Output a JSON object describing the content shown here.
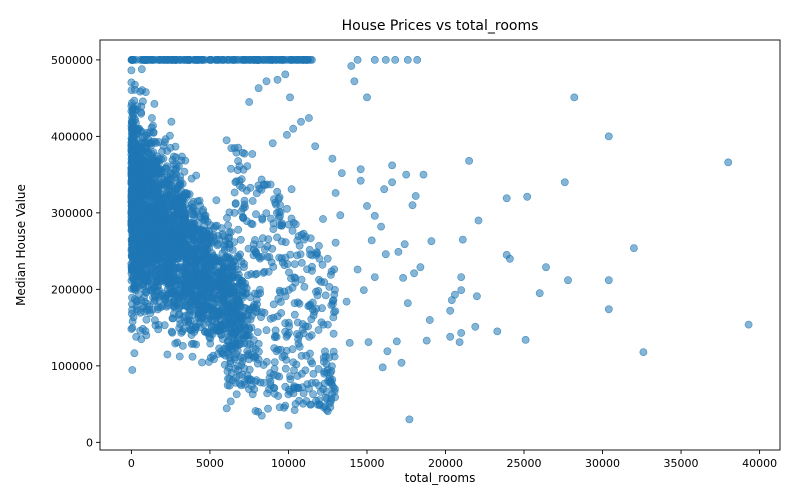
{
  "chart_data": {
    "type": "scatter",
    "title": "House Prices vs total_rooms",
    "xlabel": "total_rooms",
    "ylabel": "Median House Value",
    "xlim": [
      -2000,
      41300
    ],
    "ylim": [
      -10000,
      526000
    ],
    "xticks": [
      0,
      5000,
      10000,
      15000,
      20000,
      25000,
      30000,
      35000,
      40000
    ],
    "yticks": [
      0,
      100000,
      200000,
      300000,
      400000,
      500000
    ],
    "xtick_labels": [
      "0",
      "5000",
      "10000",
      "15000",
      "20000",
      "25000",
      "30000",
      "35000",
      "40000"
    ],
    "ytick_labels": [
      "0",
      "100000",
      "200000",
      "300000",
      "400000",
      "500000"
    ],
    "grid": false,
    "marker_color": "#1f77b4",
    "marker_alpha": 0.55,
    "points": [
      [
        39300,
        154000
      ],
      [
        38000,
        366000
      ],
      [
        32600,
        118000
      ],
      [
        32000,
        254000
      ],
      [
        30400,
        400000
      ],
      [
        30400,
        212000
      ],
      [
        30400,
        174000
      ],
      [
        28200,
        451000
      ],
      [
        27800,
        212000
      ],
      [
        27600,
        340000
      ],
      [
        26400,
        229000
      ],
      [
        26000,
        195000
      ],
      [
        25200,
        321000
      ],
      [
        25100,
        134000
      ],
      [
        24100,
        240000
      ],
      [
        23900,
        245000
      ],
      [
        23900,
        319000
      ],
      [
        23300,
        145000
      ],
      [
        22100,
        290000
      ],
      [
        22000,
        191000
      ],
      [
        21900,
        151000
      ],
      [
        21500,
        368000
      ],
      [
        21100,
        265000
      ],
      [
        21000,
        216000
      ],
      [
        21000,
        199000
      ],
      [
        21000,
        143000
      ],
      [
        20900,
        131000
      ],
      [
        20600,
        193000
      ],
      [
        20400,
        186000
      ],
      [
        20300,
        172000
      ],
      [
        20300,
        138000
      ],
      [
        19100,
        263000
      ],
      [
        19000,
        160000
      ],
      [
        18800,
        133000
      ],
      [
        18600,
        350000
      ],
      [
        18400,
        229000
      ],
      [
        18100,
        322000
      ],
      [
        18000,
        221000
      ],
      [
        17900,
        310000
      ],
      [
        17700,
        30000
      ],
      [
        17600,
        182000
      ],
      [
        17500,
        350000
      ],
      [
        17400,
        259000
      ],
      [
        17200,
        104000
      ],
      [
        17300,
        215000
      ],
      [
        17000,
        249000
      ],
      [
        16900,
        132000
      ],
      [
        16600,
        340000
      ],
      [
        16600,
        362000
      ],
      [
        16300,
        119000
      ],
      [
        16200,
        246000
      ],
      [
        16100,
        331000
      ],
      [
        16000,
        98000
      ],
      [
        15900,
        282000
      ],
      [
        15500,
        296000
      ],
      [
        15500,
        216000
      ],
      [
        15300,
        264000
      ],
      [
        15100,
        131000
      ],
      [
        15000,
        309000
      ],
      [
        15000,
        451000
      ],
      [
        14800,
        199000
      ],
      [
        14600,
        357000
      ],
      [
        14600,
        342000
      ],
      [
        14400,
        500000
      ],
      [
        14400,
        226000
      ],
      [
        14200,
        472000
      ],
      [
        14000,
        492000
      ],
      [
        13900,
        130000
      ],
      [
        13700,
        184000
      ],
      [
        13400,
        352000
      ],
      [
        13300,
        297000
      ],
      [
        13000,
        261000
      ],
      [
        13000,
        326000
      ],
      [
        12800,
        371000
      ],
      [
        12600,
        111000
      ],
      [
        12500,
        240000
      ],
      [
        12300,
        77000
      ],
      [
        12200,
        292000
      ],
      [
        12100,
        157000
      ],
      [
        11900,
        198000
      ],
      [
        11700,
        387000
      ],
      [
        11600,
        166000
      ],
      [
        11300,
        424000
      ],
      [
        11200,
        76000
      ],
      [
        11000,
        265000
      ],
      [
        10800,
        419000
      ],
      [
        10600,
        183000
      ],
      [
        10400,
        233000
      ],
      [
        10300,
        410000
      ],
      [
        10200,
        331000
      ],
      [
        10000,
        22000
      ],
      [
        10100,
        451000
      ],
      [
        9900,
        402000
      ],
      [
        9800,
        481000
      ],
      [
        9600,
        284000
      ],
      [
        9300,
        474000
      ],
      [
        9100,
        71000
      ],
      [
        9000,
        391000
      ],
      [
        8700,
        44000
      ],
      [
        8600,
        472000
      ],
      [
        8500,
        252000
      ],
      [
        8300,
        35000
      ],
      [
        8200,
        195000
      ],
      [
        8100,
        463000
      ],
      [
        7900,
        41000
      ],
      [
        7700,
        377000
      ],
      [
        7500,
        445000
      ],
      [
        7200,
        311000
      ],
      [
        7000,
        101000
      ],
      [
        6800,
        278000
      ],
      [
        15500,
        500000
      ],
      [
        16200,
        500000
      ],
      [
        16800,
        500000
      ],
      [
        17600,
        500000
      ],
      [
        18200,
        500000
      ],
      [
        11400,
        500000
      ],
      [
        11100,
        500000
      ],
      [
        10700,
        500000
      ],
      [
        10200,
        500000
      ],
      [
        9700,
        500000
      ],
      [
        9200,
        500000
      ],
      [
        8800,
        500000
      ],
      [
        8400,
        500000
      ],
      [
        8000,
        500000
      ],
      [
        7600,
        500000
      ]
    ]
  }
}
